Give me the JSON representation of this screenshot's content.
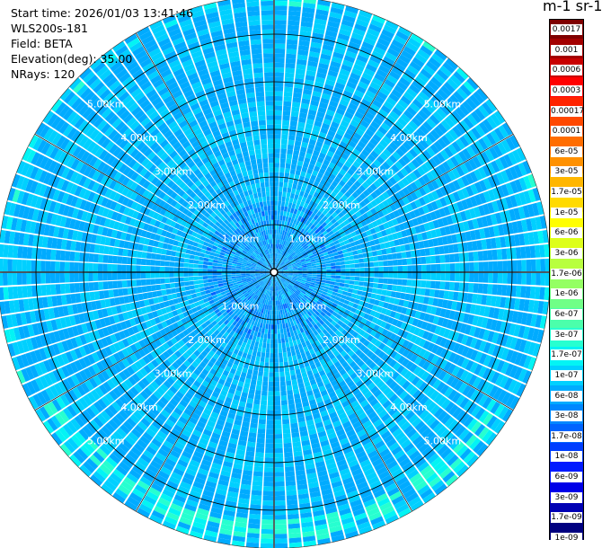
{
  "info": {
    "start_time": "Start time: 2026/01/03 13:41:46",
    "instrument": "WLS200s-181",
    "field": "Field: BETA",
    "elevation": "Elevation(deg): 35.00",
    "nrays": "NRays: 120"
  },
  "colorbar": {
    "title": "m-1 sr-1",
    "labels": [
      "0.0017",
      "0.001",
      "0.0006",
      "0.0003",
      "0.00017",
      "0.0001",
      "6e-05",
      "3e-05",
      "1.7e-05",
      "1e-05",
      "6e-06",
      "3e-06",
      "1.7e-06",
      "1e-06",
      "6e-07",
      "3e-07",
      "1.7e-07",
      "1e-07",
      "6e-08",
      "3e-08",
      "1.7e-08",
      "1e-08",
      "6e-09",
      "3e-09",
      "1.7e-09",
      "1e-09"
    ],
    "colors": [
      "#7f0000",
      "#a30000",
      "#c80000",
      "#ff0000",
      "#ff2400",
      "#ff4800",
      "#ff6d00",
      "#ff9100",
      "#ffb600",
      "#ffda00",
      "#fffe00",
      "#ddff1a",
      "#b8ff3e",
      "#94ff63",
      "#70ff87",
      "#4bffab",
      "#27ffd0",
      "#03f4f4",
      "#00d0ff",
      "#00abff",
      "#0087ff",
      "#0063ff",
      "#003eff",
      "#001aff",
      "#0000e8",
      "#0000b4",
      "#000080"
    ]
  },
  "chart_data": {
    "type": "heatmap",
    "projection": "polar",
    "field": "BETA",
    "units": "m-1 sr-1",
    "nrays": 120,
    "elevation_deg": 35.0,
    "range_max_km": 5.8,
    "range_ring_labels": [
      "1.00km",
      "2.00km",
      "3.00km",
      "4.00km",
      "5.00km"
    ],
    "dominant_value_range": [
      3e-08,
      1e-07
    ],
    "notes_ring_band": "higher values (about 1.7e-07) near 5.4 km in the southern sector"
  }
}
